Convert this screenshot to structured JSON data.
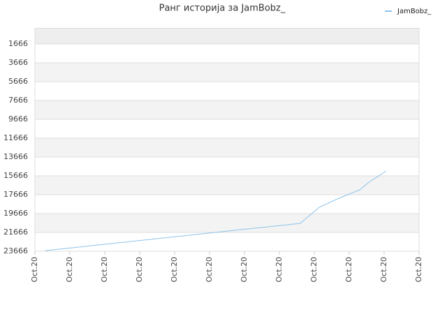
{
  "chart_data": {
    "type": "line",
    "title": "Ранг историја за JamBobz_",
    "x": [
      0.3,
      1,
      2,
      3,
      4,
      5,
      6,
      7,
      7.6,
      8.14,
      8.66,
      9.3,
      9.54,
      10.06
    ],
    "series": [
      {
        "name": "JamBobz_",
        "color": "#8ec3ea",
        "values": [
          23600,
          23322,
          22925,
          22528,
          22131,
          21734,
          21337,
          20941,
          20703,
          18999,
          18110,
          17148,
          16406,
          15147
        ]
      }
    ],
    "xlim": [
      0,
      11
    ],
    "xticks": [
      {
        "value": 0,
        "label": "Oct.20"
      },
      {
        "value": 1,
        "label": "Oct.20"
      },
      {
        "value": 2,
        "label": "Oct.20"
      },
      {
        "value": 3,
        "label": "Oct.20"
      },
      {
        "value": 4,
        "label": "Oct.20"
      },
      {
        "value": 5,
        "label": "Oct.20"
      },
      {
        "value": 6,
        "label": "Oct.20"
      },
      {
        "value": 7,
        "label": "Oct.20"
      },
      {
        "value": 8,
        "label": "Oct.20"
      },
      {
        "value": 9,
        "label": "Oct.20"
      },
      {
        "value": 10,
        "label": "Oct.20"
      },
      {
        "value": 11,
        "label": "Oct.20"
      }
    ],
    "ylim": [
      23666,
      0
    ],
    "yticks": [
      1666,
      3666,
      5666,
      7666,
      9666,
      11666,
      13666,
      15666,
      17666,
      19666,
      21666,
      23666
    ],
    "grid": true,
    "legend": "top-right"
  }
}
